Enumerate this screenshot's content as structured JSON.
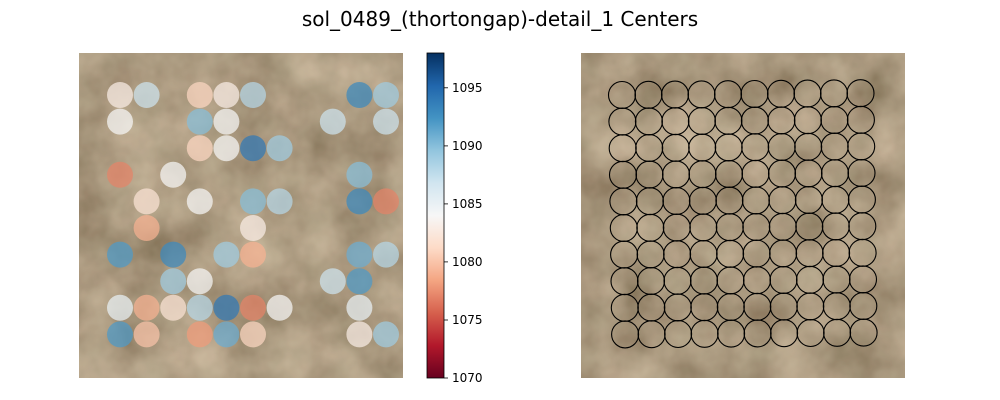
{
  "chart_data": {
    "type": "scatter",
    "title": "sol_0489_(thortongap)-detail_1 Centers",
    "panels": [
      {
        "name": "colored_centers",
        "grid": {
          "cols": 10,
          "rows": 10
        },
        "points": [
          {
            "col": 0,
            "row": 0,
            "value": 1083
          },
          {
            "col": 1,
            "row": 0,
            "value": 1087
          },
          {
            "col": 3,
            "row": 0,
            "value": 1081
          },
          {
            "col": 4,
            "row": 0,
            "value": 1083
          },
          {
            "col": 5,
            "row": 0,
            "value": 1088
          },
          {
            "col": 9,
            "row": 0,
            "value": 1093
          },
          {
            "col": 10,
            "row": 0,
            "value": 1089
          },
          {
            "col": 0,
            "row": 1,
            "value": 1084
          },
          {
            "col": 3,
            "row": 1,
            "value": 1090
          },
          {
            "col": 4,
            "row": 1,
            "value": 1084
          },
          {
            "col": 8,
            "row": 1,
            "value": 1087
          },
          {
            "col": 10,
            "row": 1,
            "value": 1087
          },
          {
            "col": 3,
            "row": 2,
            "value": 1081
          },
          {
            "col": 4,
            "row": 2,
            "value": 1084
          },
          {
            "col": 5,
            "row": 2,
            "value": 1094
          },
          {
            "col": 6,
            "row": 2,
            "value": 1089
          },
          {
            "col": 0,
            "row": 3,
            "value": 1077
          },
          {
            "col": 2,
            "row": 3,
            "value": 1084
          },
          {
            "col": 9,
            "row": 3,
            "value": 1090
          },
          {
            "col": 1,
            "row": 4,
            "value": 1082
          },
          {
            "col": 3,
            "row": 4,
            "value": 1084
          },
          {
            "col": 5,
            "row": 4,
            "value": 1090
          },
          {
            "col": 6,
            "row": 4,
            "value": 1088
          },
          {
            "col": 9,
            "row": 4,
            "value": 1093
          },
          {
            "col": 10,
            "row": 4,
            "value": 1077
          },
          {
            "col": 1,
            "row": 5,
            "value": 1079
          },
          {
            "col": 5,
            "row": 5,
            "value": 1083
          },
          {
            "col": 0,
            "row": 6,
            "value": 1092
          },
          {
            "col": 2,
            "row": 6,
            "value": 1093
          },
          {
            "col": 4,
            "row": 6,
            "value": 1089
          },
          {
            "col": 5,
            "row": 6,
            "value": 1079
          },
          {
            "col": 9,
            "row": 6,
            "value": 1091
          },
          {
            "col": 10,
            "row": 6,
            "value": 1088
          },
          {
            "col": 2,
            "row": 7,
            "value": 1089
          },
          {
            "col": 3,
            "row": 7,
            "value": 1084
          },
          {
            "col": 8,
            "row": 7,
            "value": 1087
          },
          {
            "col": 9,
            "row": 7,
            "value": 1092
          },
          {
            "col": 0,
            "row": 8,
            "value": 1085
          },
          {
            "col": 1,
            "row": 8,
            "value": 1079
          },
          {
            "col": 2,
            "row": 8,
            "value": 1082
          },
          {
            "col": 3,
            "row": 8,
            "value": 1088
          },
          {
            "col": 4,
            "row": 8,
            "value": 1094
          },
          {
            "col": 5,
            "row": 8,
            "value": 1077
          },
          {
            "col": 6,
            "row": 8,
            "value": 1084
          },
          {
            "col": 9,
            "row": 8,
            "value": 1085
          },
          {
            "col": 0,
            "row": 9,
            "value": 1092
          },
          {
            "col": 1,
            "row": 9,
            "value": 1080
          },
          {
            "col": 3,
            "row": 9,
            "value": 1078
          },
          {
            "col": 4,
            "row": 9,
            "value": 1091
          },
          {
            "col": 5,
            "row": 9,
            "value": 1081
          },
          {
            "col": 9,
            "row": 9,
            "value": 1083
          },
          {
            "col": 10,
            "row": 9,
            "value": 1089
          }
        ]
      },
      {
        "name": "circle_grid",
        "grid": {
          "cols": 10,
          "rows": 10
        }
      }
    ],
    "colorbar": {
      "cmap": "RdBu",
      "vmin": 1070,
      "vmax": 1098,
      "ticks": [
        "1070",
        "1075",
        "1080",
        "1085",
        "1090",
        "1095"
      ]
    }
  }
}
